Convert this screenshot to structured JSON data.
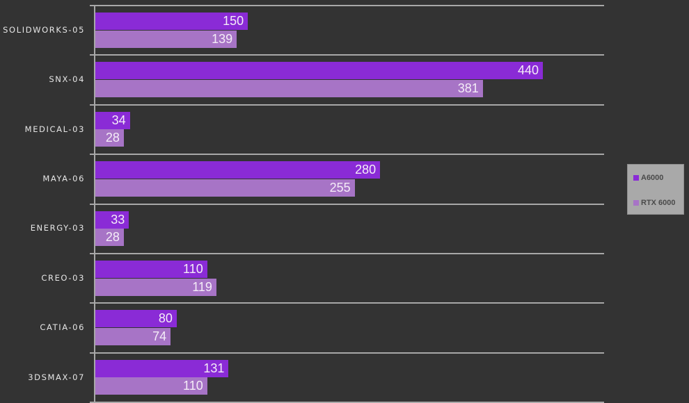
{
  "chart_data": {
    "type": "bar",
    "orientation": "horizontal",
    "title": "",
    "xlabel": "",
    "ylabel": "",
    "categories": [
      "SOLIDWORKS-05",
      "SNX-04",
      "MEDICAL-03",
      "MAYA-06",
      "ENERGY-03",
      "CREO-03",
      "CATIA-06",
      "3DSMAX-07"
    ],
    "series": [
      {
        "name": "A6000",
        "color": "#8a2bd6",
        "values": [
          150,
          440,
          34,
          280,
          33,
          110,
          80,
          131
        ]
      },
      {
        "name": "RTX 6000",
        "color": "#a774c6",
        "values": [
          139,
          381,
          28,
          255,
          28,
          119,
          74,
          110
        ]
      }
    ],
    "xlim": [
      0,
      500
    ],
    "grid": true,
    "data_labels": true,
    "legend_position": "right"
  },
  "legend": {
    "items": [
      {
        "label": "A6000",
        "color": "#8a2bd6"
      },
      {
        "label": "RTX 6000",
        "color": "#a774c6"
      }
    ]
  },
  "colors": {
    "background": "#333333",
    "gridline": "#a8a8a8",
    "label_text": "#e6e6e6",
    "legend_bg": "#a9a9a9"
  }
}
